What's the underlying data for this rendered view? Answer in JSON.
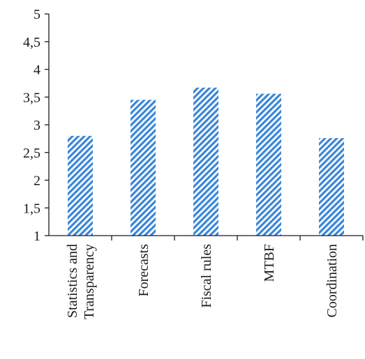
{
  "chart_data": {
    "type": "bar",
    "categories": [
      [
        "Statistics and",
        "Transparency"
      ],
      [
        "Forecasts"
      ],
      [
        "Fiscal rules"
      ],
      [
        "MTBF"
      ],
      [
        "Coordination"
      ]
    ],
    "values": [
      2.8,
      3.45,
      3.67,
      3.56,
      2.76
    ],
    "ylim": [
      1,
      5
    ],
    "yticks": [
      "1",
      "1,5",
      "2",
      "2,5",
      "3",
      "3,5",
      "4",
      "4,5",
      "5"
    ],
    "ytick_values": [
      1,
      1.5,
      2,
      2.5,
      3,
      3.5,
      4,
      4.5,
      5
    ],
    "bar_color": "#3a86d8",
    "bar_fill": "diagonal-hatch",
    "grid": false,
    "legend": "none",
    "title": "",
    "xlabel": "",
    "ylabel": ""
  }
}
